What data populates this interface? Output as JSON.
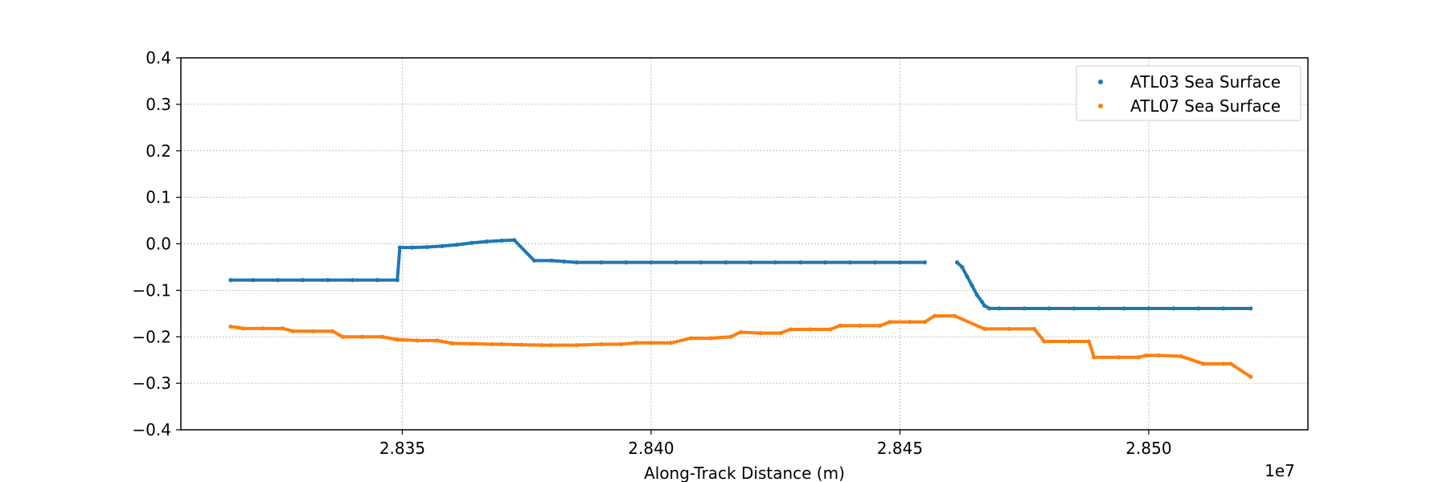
{
  "chart_data": {
    "type": "scatter",
    "title": "",
    "xlabel": "Along-Track Distance (m)",
    "ylabel": "",
    "x_offset_label": "1e7",
    "x_scale_exponent": 7,
    "xlim": [
      28.3055,
      28.532
    ],
    "ylim": [
      -0.4,
      0.4
    ],
    "xticks": [
      28.35,
      28.4,
      28.45,
      28.5
    ],
    "xtick_labels": [
      "2.835",
      "2.840",
      "2.845",
      "2.850"
    ],
    "yticks": [
      -0.4,
      -0.3,
      -0.2,
      -0.1,
      0.0,
      0.1,
      0.2,
      0.3,
      0.4
    ],
    "ytick_labels": [
      "−0.4",
      "−0.3",
      "−0.2",
      "−0.1",
      "0.0",
      "0.1",
      "0.2",
      "0.3",
      "0.4"
    ],
    "grid": true,
    "legend_position": "top-right",
    "series": [
      {
        "name": "ATL03 Sea Surface",
        "color": "#1f77b4",
        "x": [
          28.3155,
          28.32,
          28.325,
          28.33,
          28.335,
          28.34,
          28.345,
          28.349,
          28.3495,
          28.352,
          28.355,
          28.358,
          28.361,
          28.364,
          28.367,
          28.37,
          28.3725,
          28.3765,
          28.38,
          28.3825,
          28.385,
          28.39,
          28.395,
          28.4,
          28.405,
          28.41,
          28.415,
          28.42,
          28.425,
          28.43,
          28.435,
          28.44,
          28.445,
          28.45,
          28.455,
          28.4615,
          28.4625,
          28.4635,
          28.4645,
          28.4655,
          28.4665,
          28.467,
          28.468,
          28.47,
          28.475,
          28.48,
          28.485,
          28.49,
          28.495,
          28.5,
          28.505,
          28.51,
          28.515,
          28.5205
        ],
        "y": [
          -0.078,
          -0.078,
          -0.078,
          -0.078,
          -0.078,
          -0.078,
          -0.078,
          -0.078,
          -0.008,
          -0.008,
          -0.007,
          -0.005,
          -0.002,
          0.002,
          0.005,
          0.007,
          0.008,
          -0.036,
          -0.036,
          -0.038,
          -0.04,
          -0.04,
          -0.04,
          -0.04,
          -0.04,
          -0.04,
          -0.04,
          -0.04,
          -0.04,
          -0.04,
          -0.04,
          -0.04,
          -0.04,
          -0.04,
          -0.04,
          -0.04,
          -0.05,
          -0.07,
          -0.09,
          -0.11,
          -0.125,
          -0.133,
          -0.139,
          -0.139,
          -0.139,
          -0.139,
          -0.139,
          -0.139,
          -0.139,
          -0.139,
          -0.139,
          -0.139,
          -0.139,
          -0.139
        ]
      },
      {
        "name": "ATL07  Sea Surface",
        "color": "#ff7f0e",
        "x": [
          28.3155,
          28.317,
          28.318,
          28.322,
          28.326,
          28.328,
          28.332,
          28.336,
          28.338,
          28.342,
          28.346,
          28.349,
          28.353,
          28.357,
          28.36,
          28.364,
          28.368,
          28.37,
          28.374,
          28.378,
          28.38,
          28.385,
          28.39,
          28.394,
          28.397,
          28.4,
          28.404,
          28.408,
          28.412,
          28.416,
          28.418,
          28.422,
          28.426,
          28.428,
          28.432,
          28.436,
          28.438,
          28.442,
          28.446,
          28.448,
          28.452,
          28.455,
          28.457,
          28.461,
          28.467,
          28.472,
          28.477,
          28.479,
          28.484,
          28.488,
          28.489,
          28.494,
          28.498,
          28.4995,
          28.502,
          28.5065,
          28.511,
          28.515,
          28.5165,
          28.5205
        ],
        "y": [
          -0.178,
          -0.18,
          -0.182,
          -0.182,
          -0.182,
          -0.188,
          -0.188,
          -0.188,
          -0.2,
          -0.2,
          -0.2,
          -0.206,
          -0.208,
          -0.208,
          -0.214,
          -0.215,
          -0.216,
          -0.216,
          -0.217,
          -0.218,
          -0.218,
          -0.218,
          -0.216,
          -0.216,
          -0.213,
          -0.213,
          -0.213,
          -0.203,
          -0.203,
          -0.2,
          -0.19,
          -0.192,
          -0.192,
          -0.184,
          -0.184,
          -0.184,
          -0.176,
          -0.176,
          -0.176,
          -0.168,
          -0.168,
          -0.168,
          -0.155,
          -0.155,
          -0.183,
          -0.183,
          -0.183,
          -0.21,
          -0.21,
          -0.21,
          -0.244,
          -0.244,
          -0.244,
          -0.24,
          -0.24,
          -0.242,
          -0.258,
          -0.258,
          -0.258,
          -0.286
        ]
      }
    ]
  }
}
